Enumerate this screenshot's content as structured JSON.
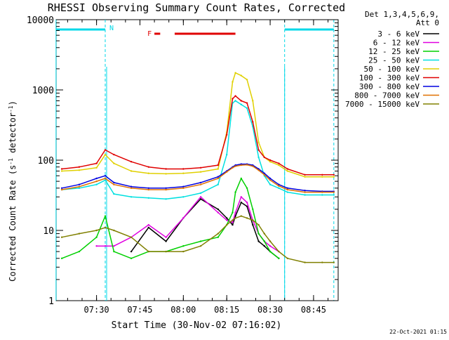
{
  "chart_data": {
    "type": "line",
    "title": "RHESSI Observing Summary Count Rates, Corrected",
    "xlabel": "Start Time (30-Nov-02 07:16:02)",
    "ylabel": "Corrected Count Rate (s⁻¹ detector⁻¹)",
    "y_scale": "log",
    "ylim": [
      1,
      10000
    ],
    "xlim": [
      "07:16:02",
      "08:53:30"
    ],
    "x_ticks": [
      "07:30",
      "07:45",
      "08:00",
      "08:15",
      "08:30",
      "08:45"
    ],
    "y_ticks": [
      "1",
      "10",
      "100",
      "1000",
      "10000"
    ],
    "grid": false,
    "legend_position": "right",
    "legend_header": [
      "Det 1,3,4,5,6,9,",
      "Att 0"
    ],
    "footer_date": "22-Oct-2021 01:15",
    "annotations": {
      "night_label": "N",
      "flare_label": "F",
      "night_intervals": [
        [
          "07:16",
          "07:33"
        ],
        [
          "08:35",
          "08:52"
        ]
      ],
      "flare_intervals": [
        [
          "07:50",
          "07:52"
        ],
        [
          "07:57",
          "08:18"
        ]
      ],
      "colors": {
        "night": "#00d8e8",
        "flare": "#e00000"
      }
    },
    "x": [
      "07:18",
      "07:24",
      "07:30",
      "07:33",
      "07:36",
      "07:42",
      "07:48",
      "07:54",
      "08:00",
      "08:06",
      "08:12",
      "08:15",
      "08:17",
      "08:18",
      "08:20",
      "08:22",
      "08:24",
      "08:26",
      "08:28",
      "08:30",
      "08:33",
      "08:36",
      "08:42",
      "08:48",
      "08:52"
    ],
    "series": [
      {
        "name": "3 - 6 keV",
        "color": "#000000",
        "values": [
          null,
          null,
          null,
          null,
          null,
          5,
          11,
          7,
          15,
          28,
          20,
          15,
          12,
          16,
          25,
          22,
          12,
          7,
          6,
          5,
          4,
          null,
          null,
          null,
          null
        ]
      },
      {
        "name": "6 - 12 keV",
        "color": "#e000e0",
        "values": [
          null,
          null,
          6,
          6,
          6,
          8,
          12,
          8,
          15,
          30,
          18,
          14,
          13,
          18,
          30,
          25,
          14,
          9,
          7,
          6,
          5,
          null,
          null,
          null,
          null
        ]
      },
      {
        "name": "12 - 25 keV",
        "color": "#00d000",
        "values": [
          4,
          5,
          8,
          16,
          5,
          4,
          5,
          5,
          6,
          7,
          8,
          12,
          18,
          35,
          55,
          40,
          20,
          9,
          7,
          5,
          4,
          null,
          null,
          null,
          null
        ]
      },
      {
        "name": "25 - 50 keV",
        "color": "#00e0e0",
        "values": [
          38,
          40,
          45,
          52,
          33,
          30,
          29,
          28,
          30,
          34,
          45,
          120,
          650,
          700,
          620,
          550,
          300,
          110,
          60,
          45,
          40,
          35,
          32,
          32,
          32
        ]
      },
      {
        "name": "50 - 100 keV",
        "color": "#e0d000",
        "values": [
          70,
          72,
          78,
          120,
          90,
          70,
          65,
          64,
          65,
          68,
          75,
          250,
          1300,
          1750,
          1600,
          1400,
          700,
          180,
          110,
          95,
          85,
          70,
          58,
          58,
          58
        ]
      },
      {
        "name": "100 - 300 keV",
        "color": "#e00000",
        "values": [
          75,
          80,
          90,
          140,
          120,
          95,
          80,
          75,
          75,
          78,
          85,
          230,
          750,
          820,
          700,
          650,
          350,
          140,
          110,
          100,
          90,
          75,
          62,
          62,
          62
        ]
      },
      {
        "name": "300 - 800 keV",
        "color": "#0000e0",
        "values": [
          40,
          45,
          55,
          60,
          48,
          42,
          40,
          40,
          42,
          48,
          58,
          70,
          80,
          85,
          88,
          88,
          85,
          75,
          65,
          55,
          45,
          40,
          37,
          36,
          36
        ]
      },
      {
        "name": "800 - 7000 keV",
        "color": "#e07000",
        "values": [
          38,
          42,
          50,
          55,
          45,
          40,
          38,
          38,
          40,
          45,
          55,
          68,
          78,
          82,
          85,
          86,
          82,
          72,
          62,
          52,
          43,
          38,
          35,
          35,
          35
        ]
      },
      {
        "name": "7000 - 15000 keV",
        "color": "#808000",
        "values": [
          8,
          9,
          10,
          11,
          10,
          8,
          5,
          5,
          5,
          6,
          9,
          12,
          14,
          15,
          16,
          15,
          14,
          12,
          9,
          7,
          5,
          4,
          3.5,
          3.5,
          3.5
        ]
      }
    ]
  }
}
